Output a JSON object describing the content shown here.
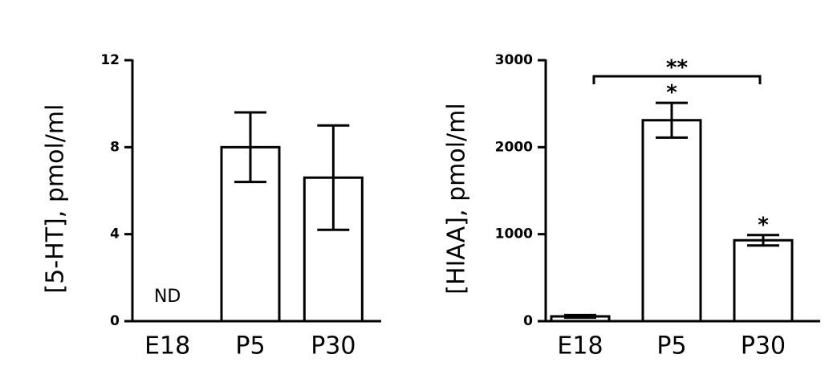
{
  "chart_data": [
    {
      "type": "bar",
      "ylabel": "[5-HT], pmol/ml",
      "categories": [
        "E18",
        "P5",
        "P30"
      ],
      "values": [
        null,
        8,
        6.6
      ],
      "errors": [
        null,
        1.6,
        2.4
      ],
      "color": "#ffffff",
      "ylim": [
        0,
        12
      ],
      "yticks": [
        0,
        4,
        8,
        12
      ],
      "annotations": [
        {
          "text": "ND",
          "category": "E18"
        }
      ]
    },
    {
      "type": "bar",
      "ylabel": "[HIAA], pmol/ml",
      "categories": [
        "E18",
        "P5",
        "P30"
      ],
      "values": [
        55,
        2310,
        930
      ],
      "errors": [
        15,
        200,
        60
      ],
      "color": "#ffffff",
      "ylim": [
        0,
        3000
      ],
      "yticks": [
        0,
        1000,
        2000,
        3000
      ],
      "annotations": [
        {
          "text": "*",
          "category": "P5"
        },
        {
          "text": "*",
          "category": "P30"
        },
        {
          "text": "**",
          "from": "E18",
          "to": "P30"
        }
      ]
    }
  ]
}
